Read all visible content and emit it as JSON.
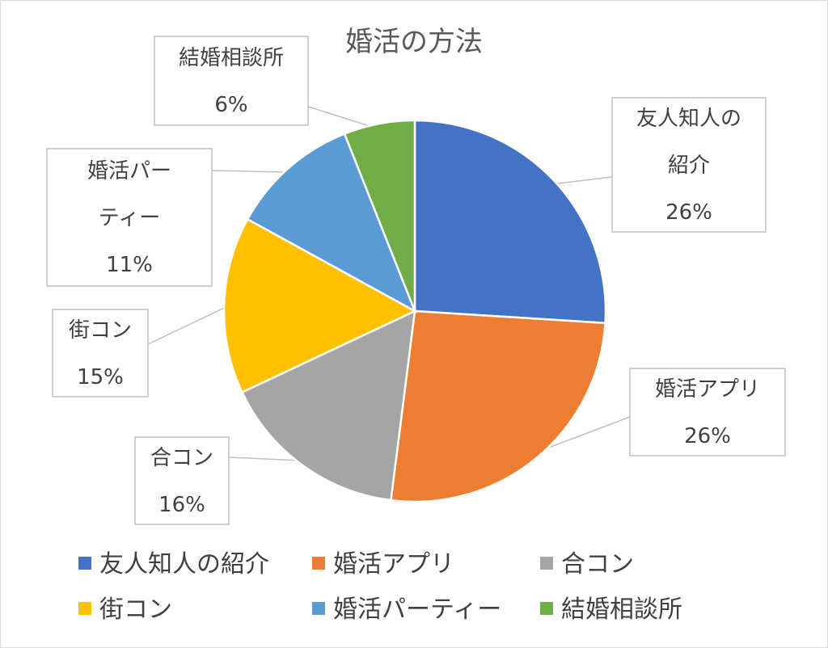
{
  "chart_data": {
    "type": "pie",
    "title": "婚活の方法",
    "categories": [
      "友人知人の紹介",
      "婚活アプリ",
      "合コン",
      "街コン",
      "婚活パーティー",
      "結婚相談所"
    ],
    "values": [
      26,
      26,
      16,
      15,
      11,
      6
    ],
    "value_labels": [
      "26%",
      "26%",
      "16%",
      "15%",
      "11%",
      "6%"
    ],
    "label_lines": [
      [
        "友人知人の",
        "紹介"
      ],
      [
        "婚活アプリ"
      ],
      [
        "合コン"
      ],
      [
        "街コン"
      ],
      [
        "婚活パー",
        "ティー"
      ],
      [
        "結婚相談所"
      ]
    ],
    "colors": [
      "#4472C4",
      "#ED7D31",
      "#A5A5A5",
      "#FFC000",
      "#5B9BD5",
      "#70AD47"
    ],
    "legend_placement": "bottom",
    "start_angle": "12 o'clock, clockwise"
  }
}
